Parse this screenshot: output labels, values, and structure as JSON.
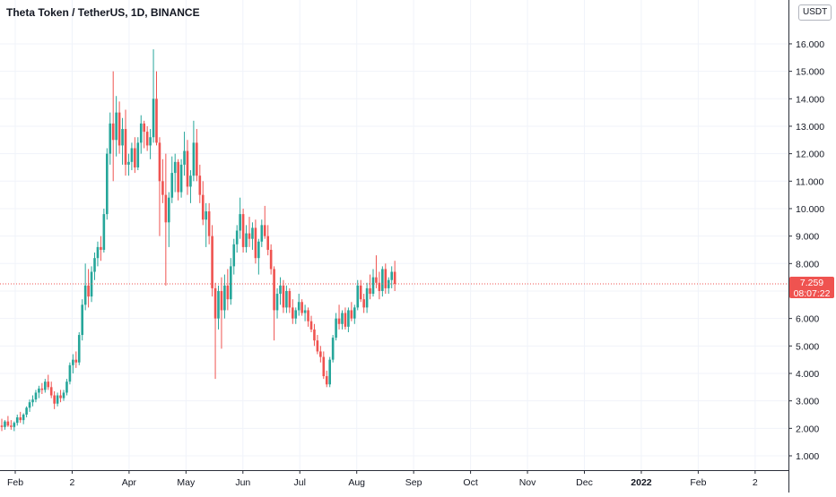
{
  "header": {
    "title": "Theta Token / TetherUS, 1D, BINANCE",
    "currency": "USDT"
  },
  "price_label": {
    "value": "7.259",
    "countdown": "08:07:22"
  },
  "colors": {
    "up": "#26a69a",
    "down": "#ef5350",
    "grid": "#f0f3fa",
    "axis_text": "#131722",
    "last_price_bg": "#ef5350",
    "last_price_line": "#ef5350"
  },
  "chart_data": {
    "type": "candlestick",
    "title": "Theta Token / TetherUS, 1D, BINANCE",
    "x_ticks": [
      "Feb",
      "2",
      "Apr",
      "May",
      "Jun",
      "Jul",
      "Aug",
      "Sep",
      "Oct",
      "Nov",
      "Dec",
      "2022",
      "Feb",
      "2"
    ],
    "y_ticks": [
      "1.000",
      "2.000",
      "3.000",
      "4.000",
      "5.000",
      "6.000",
      "7.000",
      "8.000",
      "9.000",
      "10.000",
      "11.000",
      "12.000",
      "13.000",
      "14.000",
      "15.000",
      "16.000"
    ],
    "ylim": [
      0.5,
      17.0
    ],
    "last_price": 7.259,
    "grid": true,
    "ohlc": [
      [
        2.1,
        2.35,
        1.9,
        2.05
      ],
      [
        2.05,
        2.3,
        1.95,
        2.25
      ],
      [
        2.25,
        2.45,
        2.05,
        2.1
      ],
      [
        2.1,
        2.3,
        1.95,
        2.05
      ],
      [
        2.05,
        2.25,
        1.9,
        2.2
      ],
      [
        2.2,
        2.5,
        2.1,
        2.4
      ],
      [
        2.4,
        2.6,
        2.2,
        2.3
      ],
      [
        2.3,
        2.55,
        2.15,
        2.5
      ],
      [
        2.5,
        2.8,
        2.4,
        2.75
      ],
      [
        2.75,
        3.05,
        2.6,
        2.95
      ],
      [
        2.95,
        3.2,
        2.8,
        3.05
      ],
      [
        3.05,
        3.4,
        2.95,
        3.3
      ],
      [
        3.3,
        3.55,
        3.1,
        3.45
      ],
      [
        3.45,
        3.65,
        3.25,
        3.4
      ],
      [
        3.4,
        3.8,
        3.3,
        3.7
      ],
      [
        3.7,
        3.95,
        3.4,
        3.5
      ],
      [
        3.5,
        3.7,
        3.1,
        3.2
      ],
      [
        3.2,
        3.35,
        2.7,
        2.9
      ],
      [
        2.9,
        3.3,
        2.8,
        3.2
      ],
      [
        3.2,
        3.4,
        2.95,
        3.1
      ],
      [
        3.1,
        3.4,
        3.0,
        3.3
      ],
      [
        3.3,
        3.8,
        3.2,
        3.7
      ],
      [
        3.7,
        4.4,
        3.6,
        4.3
      ],
      [
        4.3,
        4.7,
        4.0,
        4.5
      ],
      [
        4.5,
        4.8,
        4.2,
        4.4
      ],
      [
        4.4,
        5.5,
        4.3,
        5.4
      ],
      [
        5.4,
        6.7,
        5.2,
        6.5
      ],
      [
        6.5,
        8.0,
        6.3,
        7.2
      ],
      [
        7.2,
        7.8,
        6.4,
        6.8
      ],
      [
        6.8,
        7.9,
        6.6,
        7.7
      ],
      [
        7.7,
        8.4,
        7.4,
        8.2
      ],
      [
        8.2,
        8.8,
        7.9,
        8.6
      ],
      [
        8.6,
        9.0,
        8.1,
        8.5
      ],
      [
        8.5,
        10.0,
        8.4,
        9.8
      ],
      [
        9.8,
        12.2,
        9.6,
        12.0
      ],
      [
        12.0,
        13.5,
        11.6,
        13.1
      ],
      [
        13.1,
        15.0,
        11.0,
        12.5
      ],
      [
        12.5,
        14.1,
        11.9,
        13.5
      ],
      [
        13.5,
        13.9,
        12.0,
        12.3
      ],
      [
        12.3,
        13.3,
        11.6,
        12.9
      ],
      [
        12.9,
        13.6,
        11.2,
        11.6
      ],
      [
        11.6,
        12.0,
        11.2,
        11.7
      ],
      [
        11.7,
        12.4,
        11.4,
        12.2
      ],
      [
        12.2,
        12.6,
        11.3,
        11.5
      ],
      [
        11.5,
        12.6,
        11.4,
        12.4
      ],
      [
        12.4,
        13.4,
        12.0,
        13.1
      ],
      [
        13.1,
        13.2,
        12.2,
        12.8
      ],
      [
        12.8,
        13.0,
        12.1,
        12.3
      ],
      [
        12.3,
        12.9,
        11.8,
        12.6
      ],
      [
        12.6,
        15.8,
        12.4,
        14.0
      ],
      [
        14.0,
        15.0,
        12.3,
        12.4
      ],
      [
        12.4,
        12.6,
        9.0,
        11.0
      ],
      [
        11.0,
        11.8,
        10.2,
        10.5
      ],
      [
        10.5,
        12.0,
        7.2,
        9.5
      ],
      [
        9.5,
        10.6,
        8.6,
        10.4
      ],
      [
        10.4,
        11.9,
        10.2,
        11.3
      ],
      [
        11.3,
        12.0,
        10.6,
        11.7
      ],
      [
        11.7,
        11.8,
        10.3,
        10.6
      ],
      [
        10.6,
        11.8,
        10.4,
        11.6
      ],
      [
        11.6,
        12.8,
        11.2,
        12.1
      ],
      [
        12.1,
        12.5,
        10.5,
        10.8
      ],
      [
        10.8,
        11.4,
        10.2,
        11.2
      ],
      [
        11.2,
        13.2,
        11.0,
        12.4
      ],
      [
        12.4,
        12.9,
        11.0,
        11.2
      ],
      [
        11.2,
        11.6,
        10.2,
        10.5
      ],
      [
        10.5,
        11.0,
        9.4,
        9.6
      ],
      [
        9.6,
        10.2,
        8.6,
        9.9
      ],
      [
        9.9,
        10.2,
        8.7,
        9.0
      ],
      [
        9.0,
        9.4,
        6.8,
        7.1
      ],
      [
        7.1,
        7.3,
        3.8,
        6.0
      ],
      [
        6.0,
        7.2,
        5.6,
        7.0
      ],
      [
        7.0,
        7.5,
        4.9,
        6.3
      ],
      [
        6.3,
        7.6,
        6.0,
        7.2
      ],
      [
        7.2,
        7.8,
        6.3,
        6.7
      ],
      [
        6.7,
        8.2,
        6.5,
        7.9
      ],
      [
        7.9,
        8.9,
        7.6,
        8.7
      ],
      [
        8.7,
        9.4,
        8.4,
        9.2
      ],
      [
        9.2,
        10.4,
        8.9,
        9.8
      ],
      [
        9.8,
        10.0,
        8.4,
        8.6
      ],
      [
        8.6,
        9.4,
        8.4,
        9.1
      ],
      [
        9.1,
        9.7,
        8.6,
        8.9
      ],
      [
        8.9,
        9.5,
        8.5,
        9.3
      ],
      [
        9.3,
        9.6,
        8.0,
        8.2
      ],
      [
        8.2,
        8.9,
        7.6,
        8.8
      ],
      [
        8.8,
        9.6,
        8.6,
        9.4
      ],
      [
        9.4,
        10.1,
        8.9,
        9.0
      ],
      [
        9.0,
        9.4,
        8.3,
        8.5
      ],
      [
        8.5,
        8.7,
        7.6,
        7.8
      ],
      [
        7.8,
        7.9,
        5.2,
        6.3
      ],
      [
        6.3,
        7.1,
        6.0,
        6.9
      ],
      [
        6.9,
        7.5,
        6.5,
        7.2
      ],
      [
        7.2,
        7.4,
        6.2,
        6.4
      ],
      [
        6.4,
        7.2,
        6.2,
        7.0
      ],
      [
        7.0,
        7.1,
        6.2,
        6.4
      ],
      [
        6.4,
        6.7,
        5.8,
        6.0
      ],
      [
        6.0,
        6.4,
        5.8,
        6.3
      ],
      [
        6.3,
        6.9,
        6.1,
        6.6
      ],
      [
        6.6,
        6.7,
        6.1,
        6.2
      ],
      [
        6.2,
        6.5,
        5.9,
        6.3
      ],
      [
        6.3,
        6.4,
        5.7,
        5.9
      ],
      [
        5.9,
        6.1,
        5.5,
        5.6
      ],
      [
        5.6,
        5.8,
        5.0,
        5.2
      ],
      [
        5.2,
        5.4,
        4.7,
        4.8
      ],
      [
        4.8,
        5.0,
        4.4,
        4.6
      ],
      [
        4.6,
        4.8,
        3.8,
        3.9
      ],
      [
        3.9,
        4.1,
        3.5,
        3.6
      ],
      [
        3.6,
        4.6,
        3.5,
        4.5
      ],
      [
        4.5,
        5.4,
        4.4,
        5.3
      ],
      [
        5.3,
        6.2,
        5.2,
        6.0
      ],
      [
        6.0,
        6.5,
        5.6,
        5.8
      ],
      [
        5.8,
        6.3,
        5.6,
        6.2
      ],
      [
        6.2,
        6.4,
        5.6,
        5.7
      ],
      [
        5.7,
        6.4,
        5.5,
        6.3
      ],
      [
        6.3,
        6.6,
        5.9,
        6.0
      ],
      [
        6.0,
        6.5,
        5.8,
        6.4
      ],
      [
        6.4,
        7.4,
        6.3,
        7.2
      ],
      [
        7.2,
        7.4,
        6.6,
        6.7
      ],
      [
        6.7,
        6.9,
        6.2,
        6.4
      ],
      [
        6.4,
        7.3,
        6.2,
        7.1
      ],
      [
        7.1,
        7.6,
        6.7,
        6.9
      ],
      [
        6.9,
        7.8,
        6.8,
        7.5
      ],
      [
        7.5,
        8.3,
        7.1,
        7.3
      ],
      [
        7.3,
        7.7,
        6.7,
        7.0
      ],
      [
        7.0,
        7.9,
        6.8,
        7.8
      ],
      [
        7.8,
        8.0,
        6.9,
        7.1
      ],
      [
        7.1,
        7.5,
        6.9,
        7.4
      ],
      [
        7.4,
        7.9,
        7.1,
        7.7
      ],
      [
        7.7,
        8.1,
        7.0,
        7.26
      ]
    ]
  }
}
